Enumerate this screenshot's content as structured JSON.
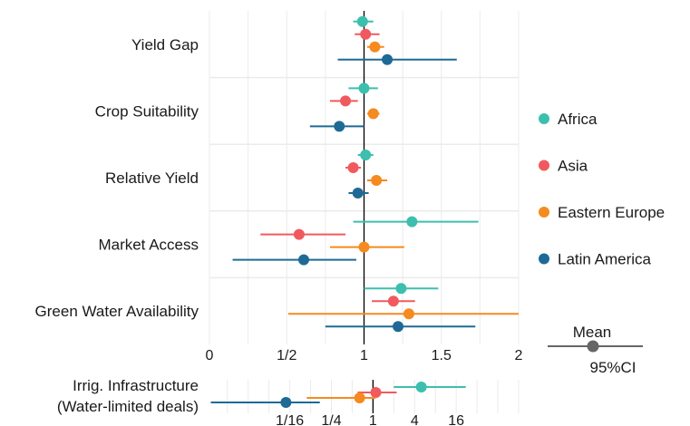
{
  "chart_data": [
    {
      "type": "forest",
      "categories": [
        "Yield Gap",
        "Crop Suitability",
        "Relative Yield",
        "Market Access",
        "Green Water Availability"
      ],
      "x_ticks": [
        {
          "value": 0,
          "label": "0"
        },
        {
          "value": 0.5,
          "label": "1/2"
        },
        {
          "value": 1,
          "label": "1"
        },
        {
          "value": 1.5,
          "label": "1.5"
        },
        {
          "value": 2,
          "label": "2"
        }
      ],
      "xlim": [
        0,
        2
      ],
      "reference_line": 1,
      "grid": true,
      "series": [
        {
          "name": "Africa",
          "color": "#3cbfae",
          "points": [
            {
              "category": "Yield Gap",
              "mean": 0.99,
              "lo": 0.93,
              "hi": 1.06
            },
            {
              "category": "Crop Suitability",
              "mean": 1.0,
              "lo": 0.9,
              "hi": 1.09
            },
            {
              "category": "Relative Yield",
              "mean": 1.01,
              "lo": 0.96,
              "hi": 1.06
            },
            {
              "category": "Market Access",
              "mean": 1.31,
              "lo": 0.93,
              "hi": 1.74
            },
            {
              "category": "Green Water Availability",
              "mean": 1.24,
              "lo": 1.0,
              "hi": 1.48
            }
          ]
        },
        {
          "name": "Asia",
          "color": "#f05a5e",
          "points": [
            {
              "category": "Yield Gap",
              "mean": 1.01,
              "lo": 0.94,
              "hi": 1.1
            },
            {
              "category": "Crop Suitability",
              "mean": 0.88,
              "lo": 0.78,
              "hi": 0.96
            },
            {
              "category": "Relative Yield",
              "mean": 0.93,
              "lo": 0.88,
              "hi": 0.98
            },
            {
              "category": "Market Access",
              "mean": 0.58,
              "lo": 0.33,
              "hi": 0.88
            },
            {
              "category": "Green Water Availability",
              "mean": 1.19,
              "lo": 1.05,
              "hi": 1.33
            }
          ]
        },
        {
          "name": "Eastern Europe",
          "color": "#f58a1f",
          "points": [
            {
              "category": "Yield Gap",
              "mean": 1.07,
              "lo": 1.02,
              "hi": 1.13
            },
            {
              "category": "Crop Suitability",
              "mean": 1.06,
              "lo": 1.02,
              "hi": 1.1
            },
            {
              "category": "Relative Yield",
              "mean": 1.08,
              "lo": 1.02,
              "hi": 1.15
            },
            {
              "category": "Market Access",
              "mean": 1.0,
              "lo": 0.78,
              "hi": 1.26
            },
            {
              "category": "Green Water Availability",
              "mean": 1.29,
              "lo": 0.51,
              "hi": 2.1
            }
          ]
        },
        {
          "name": "Latin America",
          "color": "#1e6a96",
          "points": [
            {
              "category": "Yield Gap",
              "mean": 1.15,
              "lo": 0.83,
              "hi": 1.6
            },
            {
              "category": "Crop Suitability",
              "mean": 0.84,
              "lo": 0.65,
              "hi": 1.0
            },
            {
              "category": "Relative Yield",
              "mean": 0.96,
              "lo": 0.9,
              "hi": 1.03
            },
            {
              "category": "Market Access",
              "mean": 0.61,
              "lo": 0.15,
              "hi": 0.95
            },
            {
              "category": "Green Water Availability",
              "mean": 1.22,
              "lo": 0.75,
              "hi": 1.72
            }
          ]
        }
      ]
    },
    {
      "type": "forest",
      "category_label": [
        "Irrig. Infrastructure",
        "(Water-limited deals)"
      ],
      "scale": "log2",
      "x_ticks": [
        {
          "value": 0.0625,
          "label": "1/16"
        },
        {
          "value": 0.25,
          "label": "1/4"
        },
        {
          "value": 1,
          "label": "1"
        },
        {
          "value": 4,
          "label": "4"
        },
        {
          "value": 16,
          "label": "16"
        }
      ],
      "xlim": [
        0.0043,
        128
      ],
      "reference_line": 1,
      "grid": true,
      "series": [
        {
          "name": "Africa",
          "color": "#3cbfae",
          "mean": 5.0,
          "lo": 2.0,
          "hi": 22.0
        },
        {
          "name": "Asia",
          "color": "#f05a5e",
          "mean": 1.1,
          "lo": 0.6,
          "hi": 2.2
        },
        {
          "name": "Eastern Europe",
          "color": "#f58a1f",
          "mean": 0.64,
          "lo": 0.11,
          "hi": 1.1
        },
        {
          "name": "Latin America",
          "color": "#1e6a96",
          "mean": 0.055,
          "lo": 0.0045,
          "hi": 0.17
        }
      ]
    }
  ],
  "legend": {
    "position": "right",
    "items": [
      {
        "label": "Africa",
        "color": "#3cbfae"
      },
      {
        "label": "Asia",
        "color": "#f05a5e"
      },
      {
        "label": "Eastern Europe",
        "color": "#f58a1f"
      },
      {
        "label": "Latin America",
        "color": "#1e6a96"
      }
    ]
  },
  "key": {
    "mean_label": "Mean",
    "ci_label": "95%CI",
    "color": "#666666"
  }
}
